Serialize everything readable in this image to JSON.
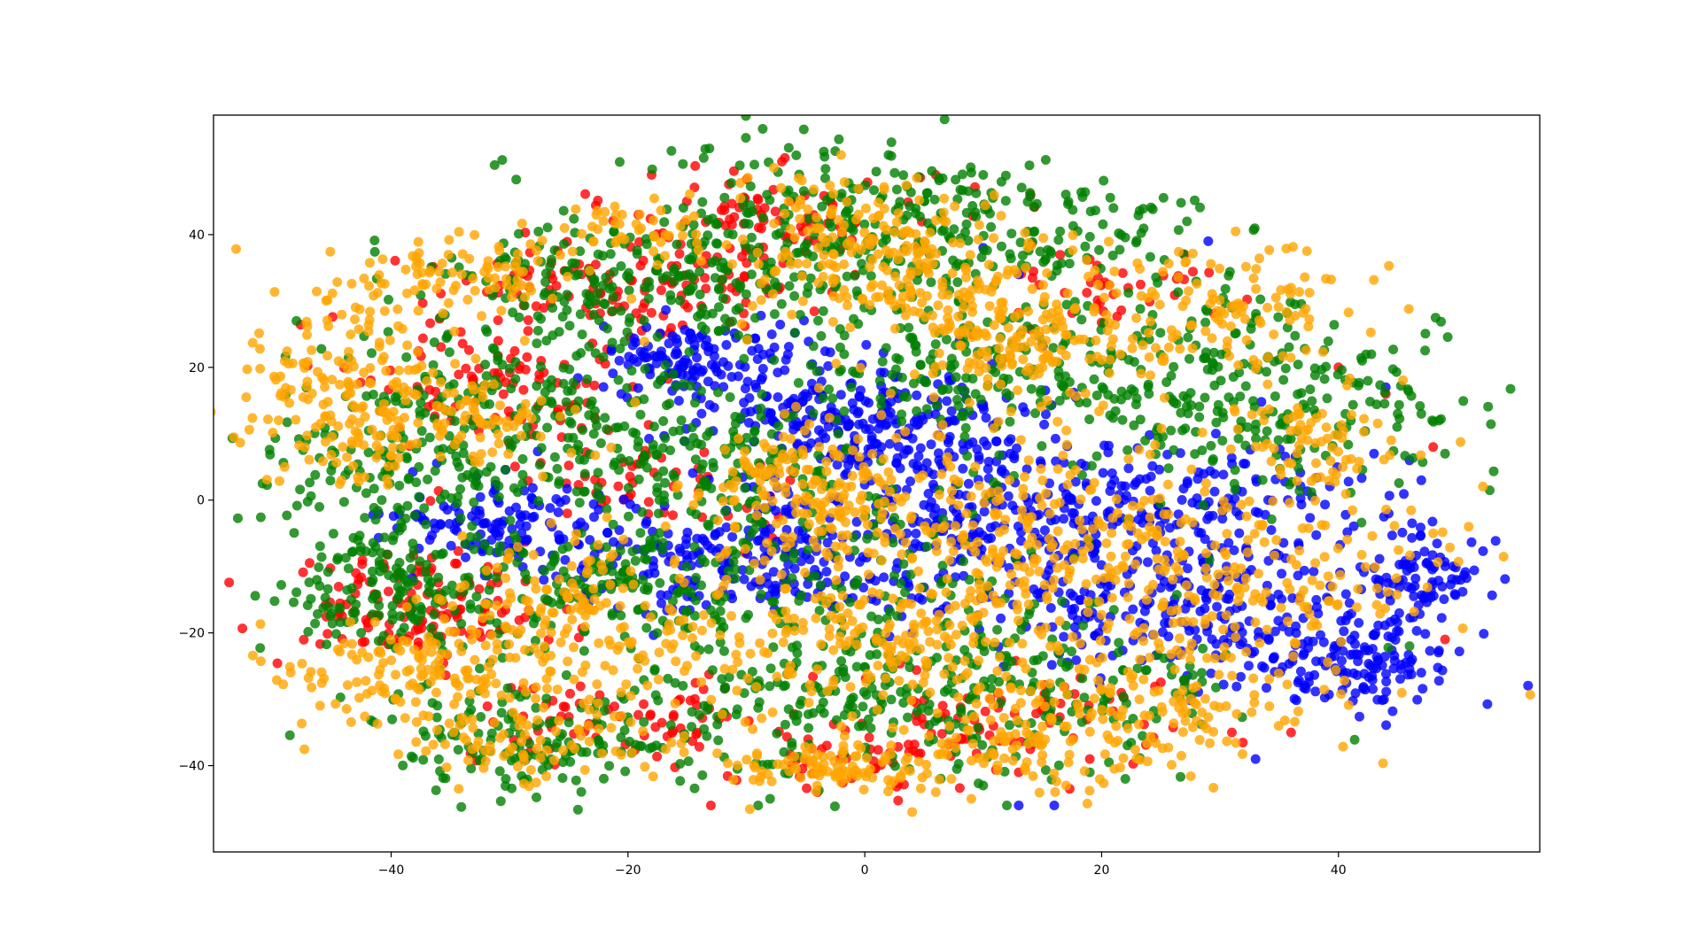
{
  "chart_data": {
    "type": "scatter",
    "title": "",
    "xlabel": "",
    "ylabel": "",
    "xlim": [
      -55,
      57
    ],
    "ylim": [
      -53,
      58
    ],
    "x_ticks": [
      -40,
      -20,
      0,
      20,
      40
    ],
    "y_ticks": [
      -40,
      -20,
      0,
      20,
      40
    ],
    "x_tick_labels": [
      "−40",
      "−20",
      "0",
      "20",
      "40"
    ],
    "y_tick_labels": [
      "−40",
      "−20",
      "0",
      "20",
      "40"
    ],
    "grid": false,
    "legend": "none",
    "marker_alpha": 0.8,
    "series": [
      {
        "color": "#ff0000",
        "clusters": [
          {
            "center": [
              -38,
              -16
            ],
            "spread": [
              6,
              4
            ],
            "n": 140
          },
          {
            "center": [
              -20,
              32
            ],
            "spread": [
              8,
              3
            ],
            "n": 110
          },
          {
            "center": [
              -32,
              18
            ],
            "spread": [
              6,
              5
            ],
            "n": 90
          },
          {
            "center": [
              -9,
              42
            ],
            "spread": [
              8,
              4
            ],
            "n": 90
          },
          {
            "center": [
              -20,
              -33
            ],
            "spread": [
              6,
              3
            ],
            "n": 70
          },
          {
            "center": [
              0,
              -38
            ],
            "spread": [
              6,
              3
            ],
            "n": 50
          },
          {
            "center": [
              12,
              -32
            ],
            "spread": [
              8,
              4
            ],
            "n": 70
          },
          {
            "center": [
              -20,
              2
            ],
            "spread": [
              8,
              4
            ],
            "n": 60
          },
          {
            "center": [
              22,
              32
            ],
            "spread": [
              6,
              3
            ],
            "n": 40
          }
        ],
        "points": [
          [
            -18,
            49
          ],
          [
            -7,
            51
          ],
          [
            6,
            49
          ],
          [
            14,
            46
          ],
          [
            21,
            31
          ],
          [
            27,
            37
          ],
          [
            40,
            20
          ],
          [
            44,
            16
          ],
          [
            48,
            8
          ],
          [
            49,
            -21
          ],
          [
            -13,
            -46
          ],
          [
            -4,
            -44
          ],
          [
            13,
            -41
          ],
          [
            19,
            -39
          ],
          [
            31,
            -35
          ],
          [
            36,
            -35
          ]
        ]
      },
      {
        "color": "#0000ff",
        "clusters": [
          {
            "center": [
              -15,
              21
            ],
            "spread": [
              4,
              3
            ],
            "n": 120
          },
          {
            "center": [
              -6,
              14
            ],
            "spread": [
              5,
              4
            ],
            "n": 110
          },
          {
            "center": [
              5,
              10
            ],
            "spread": [
              6,
              5
            ],
            "n": 180
          },
          {
            "center": [
              -30,
              -4
            ],
            "spread": [
              5,
              4
            ],
            "n": 130
          },
          {
            "center": [
              -10,
              -9
            ],
            "spread": [
              8,
              5
            ],
            "n": 220
          },
          {
            "center": [
              12,
              -5
            ],
            "spread": [
              10,
              7
            ],
            "n": 250
          },
          {
            "center": [
              30,
              -18
            ],
            "spread": [
              10,
              5
            ],
            "n": 220
          },
          {
            "center": [
              42,
              -26
            ],
            "spread": [
              4,
              3
            ],
            "n": 100
          },
          {
            "center": [
              47,
              -12
            ],
            "spread": [
              3,
              4
            ],
            "n": 90
          },
          {
            "center": [
              28,
              -2
            ],
            "spread": [
              8,
              5
            ],
            "n": 160
          }
        ],
        "points": [
          [
            29,
            39
          ],
          [
            10,
            38
          ],
          [
            13,
            34
          ],
          [
            44,
            17
          ],
          [
            43,
            7
          ],
          [
            46,
            6
          ],
          [
            47,
            3
          ],
          [
            47,
            -26
          ],
          [
            33,
            -39
          ],
          [
            13,
            -46
          ],
          [
            16,
            -46
          ]
        ]
      },
      {
        "color": "#008000",
        "clusters": [
          {
            "center": [
              -40,
              -14
            ],
            "spread": [
              5,
              5
            ],
            "n": 160
          },
          {
            "center": [
              -37,
              4
            ],
            "spread": [
              7,
              6
            ],
            "n": 160
          },
          {
            "center": [
              -29,
              18
            ],
            "spread": [
              8,
              6
            ],
            "n": 160
          },
          {
            "center": [
              -20,
              33
            ],
            "spread": [
              8,
              4
            ],
            "n": 150
          },
          {
            "center": [
              -6,
              40
            ],
            "spread": [
              9,
              7
            ],
            "n": 220
          },
          {
            "center": [
              12,
              40
            ],
            "spread": [
              9,
              5
            ],
            "n": 170
          },
          {
            "center": [
              -15,
              6
            ],
            "spread": [
              7,
              5
            ],
            "n": 160
          },
          {
            "center": [
              -20,
              -12
            ],
            "spread": [
              7,
              5
            ],
            "n": 160
          },
          {
            "center": [
              -27,
              -36
            ],
            "spread": [
              8,
              4
            ],
            "n": 150
          },
          {
            "center": [
              -5,
              -30
            ],
            "spread": [
              10,
              6
            ],
            "n": 180
          },
          {
            "center": [
              14,
              -28
            ],
            "spread": [
              10,
              6
            ],
            "n": 170
          },
          {
            "center": [
              25,
              20
            ],
            "spread": [
              10,
              7
            ],
            "n": 200
          },
          {
            "center": [
              36,
              12
            ],
            "spread": [
              8,
              6
            ],
            "n": 130
          },
          {
            "center": [
              5,
              20
            ],
            "spread": [
              6,
              5
            ],
            "n": 120
          },
          {
            "center": [
              2,
              -10
            ],
            "spread": [
              8,
              8
            ],
            "n": 120
          }
        ],
        "points": [
          [
            -48,
            27
          ],
          [
            2,
            52
          ],
          [
            10,
            49
          ],
          [
            21,
            44
          ],
          [
            42,
            21
          ],
          [
            45,
            13
          ],
          [
            47,
            13
          ],
          [
            49,
            7
          ],
          [
            46,
            -22
          ],
          [
            -9,
            -46
          ],
          [
            -8,
            -45
          ],
          [
            10,
            -43
          ],
          [
            12,
            -46
          ],
          [
            19,
            -41
          ],
          [
            22,
            -42
          ]
        ]
      },
      {
        "color": "#ffa500",
        "clusters": [
          {
            "center": [
              -44,
              16
            ],
            "spread": [
              4,
              8
            ],
            "n": 150
          },
          {
            "center": [
              -35,
              13
            ],
            "spread": [
              5,
              4
            ],
            "n": 110
          },
          {
            "center": [
              -34,
              34
            ],
            "spread": [
              5,
              3
            ],
            "n": 90
          },
          {
            "center": [
              -37,
              -26
            ],
            "spread": [
              6,
              4
            ],
            "n": 130
          },
          {
            "center": [
              -24,
              -19
            ],
            "spread": [
              7,
              7
            ],
            "n": 180
          },
          {
            "center": [
              -27,
              -37
            ],
            "spread": [
              7,
              3
            ],
            "n": 90
          },
          {
            "center": [
              -20,
              41
            ],
            "spread": [
              3,
              2
            ],
            "n": 40
          },
          {
            "center": [
              -4,
              2
            ],
            "spread": [
              5,
              5
            ],
            "n": 150
          },
          {
            "center": [
              -1,
              38
            ],
            "spread": [
              6,
              6
            ],
            "n": 170
          },
          {
            "center": [
              10,
              30
            ],
            "spread": [
              6,
              5
            ],
            "n": 140
          },
          {
            "center": [
              14,
              22
            ],
            "spread": [
              5,
              4
            ],
            "n": 90
          },
          {
            "center": [
              30,
              28
            ],
            "spread": [
              6,
              6
            ],
            "n": 120
          },
          {
            "center": [
              10,
              -5
            ],
            "spread": [
              9,
              9
            ],
            "n": 220
          },
          {
            "center": [
              28,
              -12
            ],
            "spread": [
              11,
              9
            ],
            "n": 280
          },
          {
            "center": [
              2,
              -22
            ],
            "spread": [
              8,
              5
            ],
            "n": 150
          },
          {
            "center": [
              -2,
              -40
            ],
            "spread": [
              5,
              2
            ],
            "n": 100
          },
          {
            "center": [
              15,
              -37
            ],
            "spread": [
              8,
              3
            ],
            "n": 90
          },
          {
            "center": [
              22,
              -31
            ],
            "spread": [
              8,
              4
            ],
            "n": 110
          },
          {
            "center": [
              38,
              8
            ],
            "spread": [
              4,
              4
            ],
            "n": 60
          }
        ],
        "points": [
          [
            -2,
            52
          ],
          [
            36,
            32
          ],
          [
            34,
            29
          ],
          [
            51,
            -4
          ],
          [
            48,
            -5
          ],
          [
            4,
            -47
          ],
          [
            6,
            -44
          ],
          [
            9,
            -45
          ],
          [
            17,
            -43
          ]
        ]
      }
    ]
  }
}
